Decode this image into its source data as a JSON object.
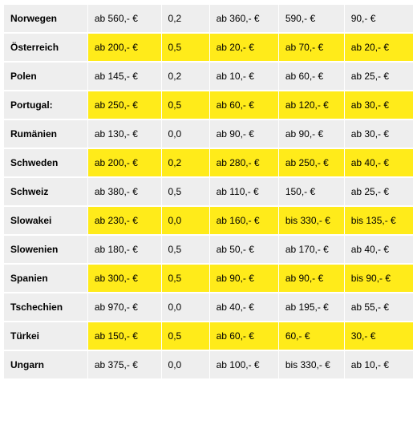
{
  "colors": {
    "gray": "#eeeeee",
    "yellow": "#ffeb1a",
    "black": "#000000"
  },
  "columns": [
    "col0",
    "col1",
    "col2",
    "col3",
    "col4"
  ],
  "rows": [
    {
      "country": "Norwegen",
      "highlight": false,
      "cells": [
        "ab 560,- €",
        "0,2",
        "ab 360,- €",
        "590,- €",
        "90,- €"
      ]
    },
    {
      "country": "Österreich",
      "highlight": true,
      "cells": [
        "ab 200,- €",
        "0,5",
        "ab 20,- €",
        "ab 70,- €",
        "ab 20,- €"
      ]
    },
    {
      "country": "Polen",
      "highlight": false,
      "cells": [
        "ab 145,- €",
        "0,2",
        "ab 10,- €",
        "ab 60,- €",
        "ab 25,- €"
      ]
    },
    {
      "country": "Portugal:",
      "highlight": true,
      "cells": [
        "ab 250,- €",
        "0,5",
        "ab 60,- €",
        "ab 120,- €",
        "ab 30,- €"
      ]
    },
    {
      "country": "Rumänien",
      "highlight": false,
      "cells": [
        "ab 130,- €",
        "0,0",
        "ab 90,- €",
        "ab 90,- €",
        "ab 30,- €"
      ]
    },
    {
      "country": "Schweden",
      "highlight": true,
      "cells": [
        "ab 200,- €",
        "0,2",
        "ab 280,- €",
        "ab 250,- €",
        "ab 40,- €"
      ]
    },
    {
      "country": "Schweiz",
      "highlight": false,
      "cells": [
        "ab 380,- €",
        "0,5",
        "ab 110,- €",
        "150,- €",
        "ab 25,- €"
      ]
    },
    {
      "country": "Slowakei",
      "highlight": true,
      "cells": [
        "ab 230,- €",
        "0,0",
        "ab 160,- €",
        "bis 330,- €",
        "bis 135,- €"
      ]
    },
    {
      "country": "Slowenien",
      "highlight": false,
      "cells": [
        "ab 180,- €",
        "0,5",
        "ab 50,- €",
        "ab 170,- €",
        "ab 40,- €"
      ]
    },
    {
      "country": "Spanien",
      "highlight": true,
      "cells": [
        "ab 300,- €",
        "0,5",
        "ab 90,- €",
        "ab 90,- €",
        "bis 90,- €"
      ]
    },
    {
      "country": "Tschechien",
      "highlight": false,
      "cells": [
        "ab 970,- €",
        "0,0",
        "ab 40,- €",
        "ab 195,- €",
        "ab 55,- €"
      ]
    },
    {
      "country": "Türkei",
      "highlight": true,
      "cells": [
        "ab 150,- €",
        "0,5",
        "ab 60,- €",
        "60,- €",
        "30,- €"
      ]
    },
    {
      "country": "Ungarn",
      "highlight": false,
      "cells": [
        "ab 375,- €",
        "0,0",
        "ab 100,- €",
        "bis 330,- €",
        "ab 10,- €"
      ]
    }
  ]
}
